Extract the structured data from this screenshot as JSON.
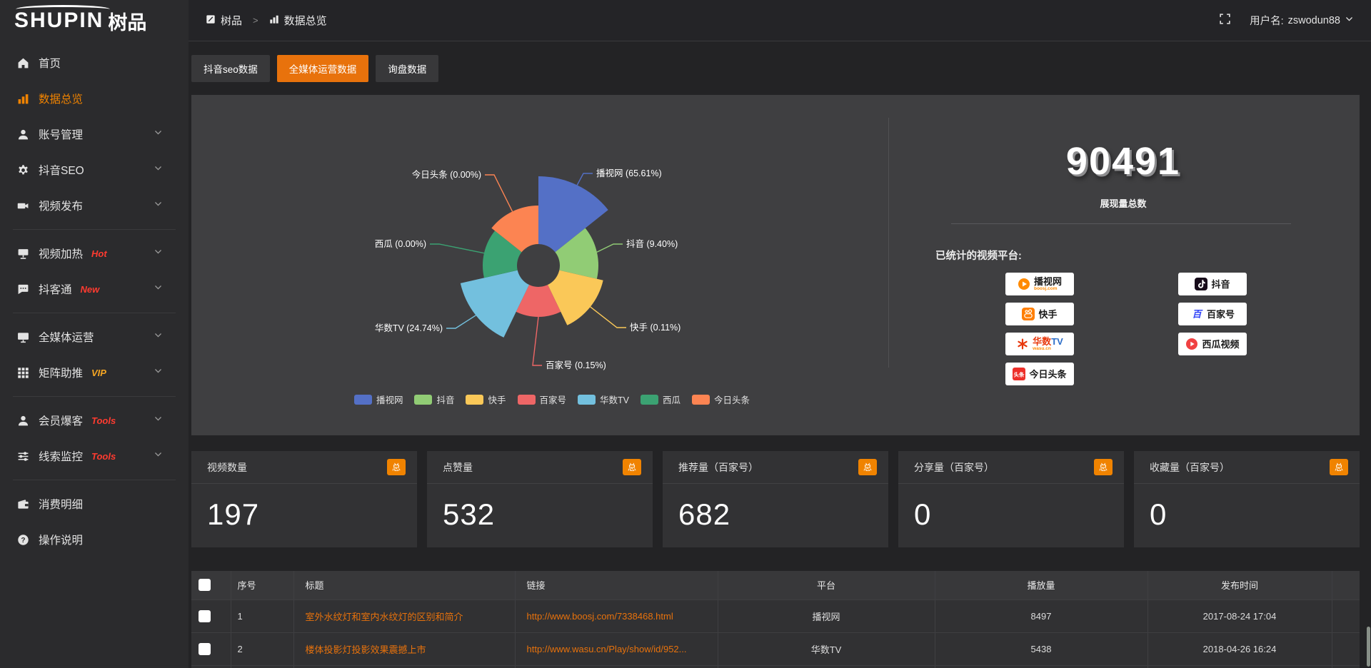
{
  "brand": {
    "name": "SHUPIN",
    "suffix": "树品"
  },
  "topbar": {
    "breadcrumb": {
      "root": "树品",
      "separator": ">",
      "current": "数据总览"
    },
    "user_prefix": "用户名:",
    "username": "zswodun88"
  },
  "sidebar": {
    "items": [
      {
        "type": "item",
        "icon": "home-icon",
        "label": "首页"
      },
      {
        "type": "item",
        "icon": "bar-chart-icon",
        "label": "数据总览",
        "active": true
      },
      {
        "type": "item",
        "icon": "user-icon",
        "label": "账号管理",
        "chevron": true
      },
      {
        "type": "item",
        "icon": "gear-icon",
        "label": "抖音SEO",
        "chevron": true
      },
      {
        "type": "item",
        "icon": "video-camera-icon",
        "label": "视频发布",
        "chevron": true
      },
      {
        "type": "divider"
      },
      {
        "type": "item",
        "icon": "billboard-icon",
        "label": "视频加热",
        "badge": "Hot",
        "badge_color": "#ff3b30",
        "chevron": true
      },
      {
        "type": "item",
        "icon": "comment-icon",
        "label": "抖客通",
        "badge": "New",
        "badge_color": "#ff3b30",
        "chevron": true
      },
      {
        "type": "divider"
      },
      {
        "type": "item",
        "icon": "monitor-icon",
        "label": "全媒体运营",
        "chevron": true
      },
      {
        "type": "item",
        "icon": "grid-icon",
        "label": "矩阵助推",
        "badge": "VIP",
        "badge_color": "#f5a623",
        "chevron": true
      },
      {
        "type": "divider"
      },
      {
        "type": "item",
        "icon": "person-icon",
        "label": "会员爆客",
        "badge": "Tools",
        "badge_color": "#ff3b30",
        "chevron": true
      },
      {
        "type": "item",
        "icon": "sliders-icon",
        "label": "线索监控",
        "badge": "Tools",
        "badge_color": "#ff3b30",
        "chevron": true
      },
      {
        "type": "divider"
      },
      {
        "type": "item",
        "icon": "wallet-icon",
        "label": "消费明细"
      },
      {
        "type": "item",
        "icon": "question-icon",
        "label": "操作说明"
      }
    ]
  },
  "tabs": [
    {
      "label": "抖音seo数据",
      "active": false
    },
    {
      "label": "全媒体运营数据",
      "active": true
    },
    {
      "label": "询盘数据",
      "active": false
    }
  ],
  "chart_data": {
    "type": "pie",
    "subtype": "nightingale-rose",
    "title": "",
    "legend_position": "bottom",
    "items": [
      {
        "name": "播视网",
        "pct": "65.61",
        "color": "#5470c6"
      },
      {
        "name": "抖音",
        "pct": "9.40",
        "color": "#91cc75"
      },
      {
        "name": "快手",
        "pct": "0.11",
        "color": "#fac858"
      },
      {
        "name": "百家号",
        "pct": "0.15",
        "color": "#ee6666"
      },
      {
        "name": "华数TV",
        "pct": "24.74",
        "color": "#73c0de"
      },
      {
        "name": "西瓜",
        "pct": "0.00",
        "color": "#3ba272"
      },
      {
        "name": "今日头条",
        "pct": "0.00",
        "color": "#fc8452"
      }
    ],
    "label_format": "{name} ({pct}%)",
    "total_shown": "90491"
  },
  "summary": {
    "total": "90491",
    "total_label": "展现量总数",
    "platforms_title": "已统计的视频平台:",
    "platforms": [
      {
        "icon": "boosj-logo",
        "name": "播视网",
        "sub": "boosj.com",
        "col": 0,
        "row": 0
      },
      {
        "icon": "douyin-logo",
        "name": "抖音",
        "col": 1,
        "row": 0
      },
      {
        "icon": "kuaishou-logo",
        "name": "快手",
        "col": 0,
        "row": 1
      },
      {
        "icon": "baijiahao-logo",
        "name": "百家号",
        "col": 1,
        "row": 1
      },
      {
        "icon": "wasu-logo",
        "name_parts": [
          {
            "t": "华数",
            "c": "#e8380d"
          },
          {
            "t": "TV",
            "c": "#2b6dc8"
          }
        ],
        "name": "华数TV",
        "sub": "wasu.cn",
        "col": 0,
        "row": 2
      },
      {
        "icon": "xigua-logo",
        "name": "西瓜视频",
        "col": 1,
        "row": 2
      },
      {
        "icon": "toutiao-logo",
        "name": "今日头条",
        "col": 0,
        "row": 3
      }
    ]
  },
  "stat_cards": [
    {
      "title": "视频数量",
      "badge": "总",
      "value": "197"
    },
    {
      "title": "点赞量",
      "badge": "总",
      "value": "532"
    },
    {
      "title": "推荐量（百家号）",
      "badge": "总",
      "value": "682"
    },
    {
      "title": "分享量（百家号）",
      "badge": "总",
      "value": "0"
    },
    {
      "title": "收藏量（百家号）",
      "badge": "总",
      "value": "0"
    }
  ],
  "table": {
    "headers": {
      "index": "序号",
      "title": "标题",
      "link": "链接",
      "platform": "平台",
      "plays": "播放量",
      "published": "发布时间"
    },
    "rows": [
      {
        "index": "1",
        "title": "室外水纹灯和室内水纹灯的区别和简介",
        "link": "http://www.boosj.com/7338468.html",
        "platform": "播视网",
        "plays": "8497",
        "published": "2017-08-24 17:04"
      },
      {
        "index": "2",
        "title": "楼体投影灯投影效果震撼上市",
        "link": "http://www.wasu.cn/Play/show/id/952...",
        "platform": "华数TV",
        "plays": "5438",
        "published": "2018-04-26 16:24"
      }
    ]
  }
}
